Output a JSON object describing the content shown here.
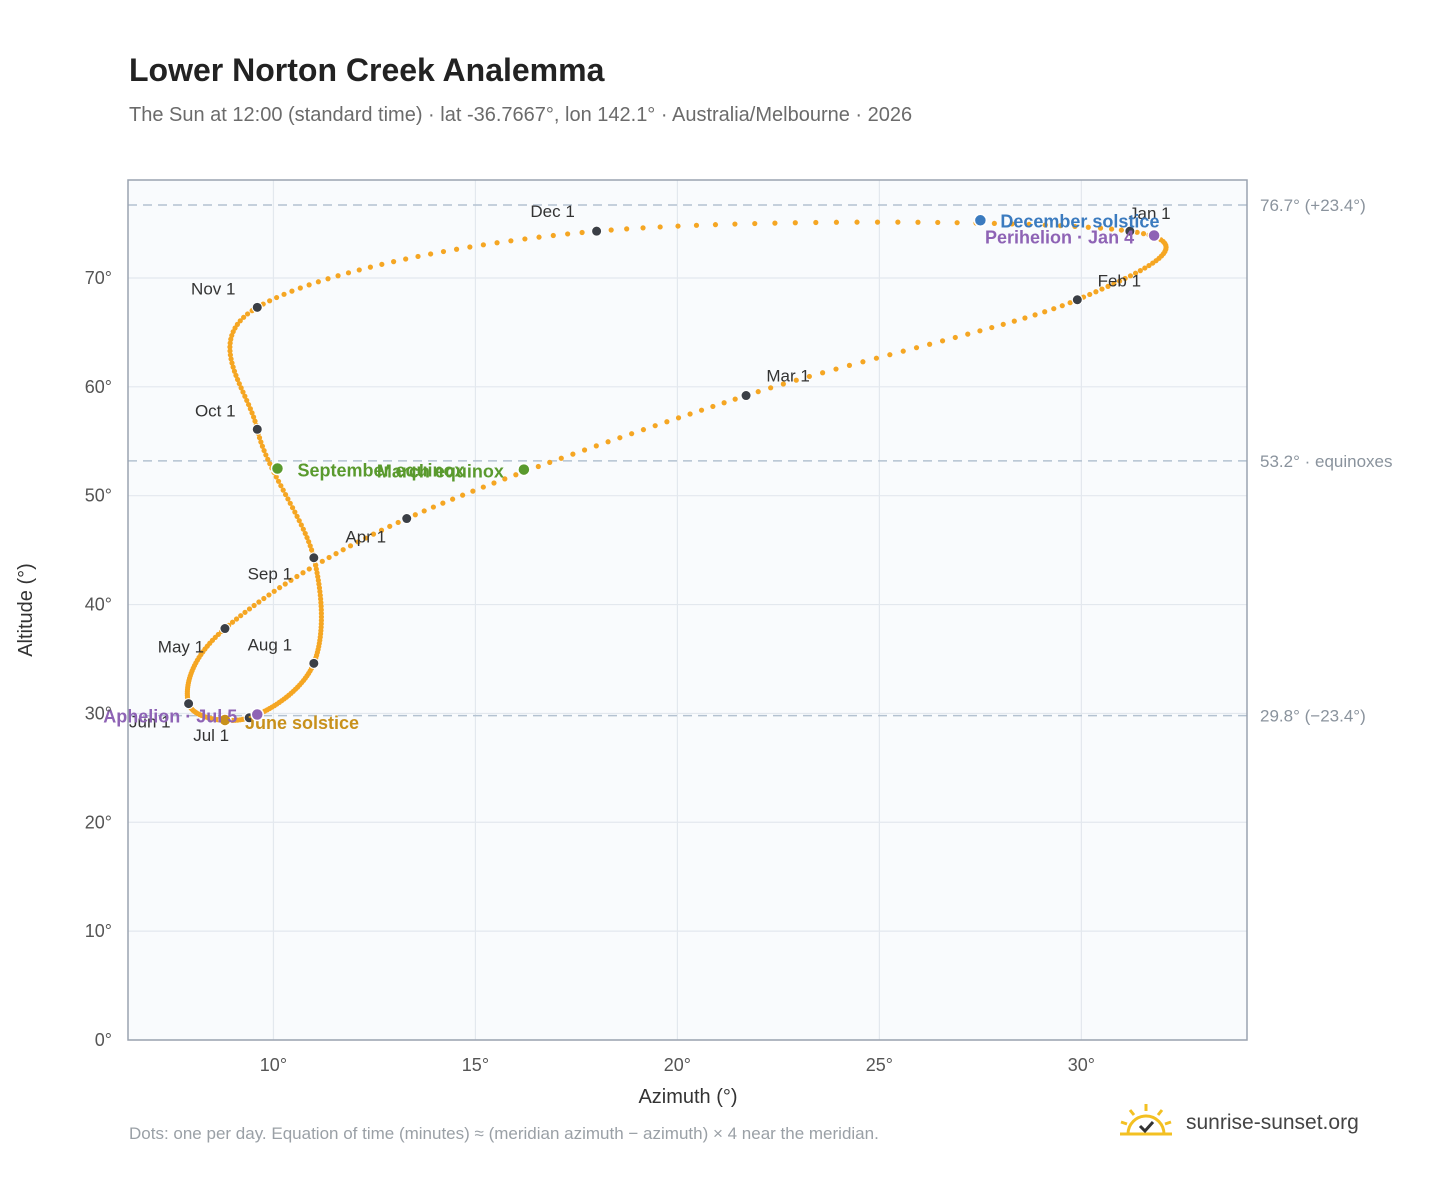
{
  "header": {
    "title": "Lower Norton Creek Analemma",
    "subtitle": "The Sun at 12:00 (standard time) · lat -36.7667°, lon 142.1° · Australia/Melbourne · 2026"
  },
  "footer": {
    "note": "Dots: one per day. Equation of time (minutes) ≈ (meridian azimuth − azimuth) × 4 near the meridian.",
    "brand": "sunrise-sunset.org",
    "brand_icon": "sun-check-icon"
  },
  "chart_data": {
    "type": "scatter",
    "xlabel": "Azimuth (°)",
    "ylabel": "Altitude (°)",
    "xlim": [
      6.4,
      34.1
    ],
    "ylim": [
      0,
      79
    ],
    "xticks": [
      10,
      15,
      20,
      25,
      30
    ],
    "xtick_labels": [
      "10°",
      "15°",
      "20°",
      "25°",
      "30°"
    ],
    "yticks": [
      0,
      10,
      20,
      30,
      40,
      50,
      60,
      70
    ],
    "ytick_labels": [
      "0°",
      "10°",
      "20°",
      "30°",
      "40°",
      "50°",
      "60°",
      "70°"
    ],
    "grid": true,
    "curve_color": "#f5a623",
    "month_points": [
      {
        "label": "Jan 1",
        "azimuth": 31.2,
        "altitude": 74.3
      },
      {
        "label": "Feb 1",
        "azimuth": 29.9,
        "altitude": 68.0
      },
      {
        "label": "Mar 1",
        "azimuth": 21.7,
        "altitude": 59.2
      },
      {
        "label": "Apr 1",
        "azimuth": 13.3,
        "altitude": 47.9
      },
      {
        "label": "May 1",
        "azimuth": 8.8,
        "altitude": 37.8
      },
      {
        "label": "Jun 1",
        "azimuth": 7.9,
        "altitude": 30.9
      },
      {
        "label": "Jul 1",
        "azimuth": 9.4,
        "altitude": 29.6
      },
      {
        "label": "Aug 1",
        "azimuth": 11.0,
        "altitude": 34.6
      },
      {
        "label": "Sep 1",
        "azimuth": 11.0,
        "altitude": 44.3
      },
      {
        "label": "Oct 1",
        "azimuth": 9.6,
        "altitude": 56.1
      },
      {
        "label": "Nov 1",
        "azimuth": 9.6,
        "altitude": 67.3
      },
      {
        "label": "Dec 1",
        "azimuth": 18.0,
        "altitude": 74.3
      }
    ],
    "events": [
      {
        "label": "December solstice",
        "azimuth": 27.5,
        "altitude": 75.3,
        "color": "#3b7bbf"
      },
      {
        "label": "Perihelion · Jan 4",
        "azimuth": 31.8,
        "altitude": 73.9,
        "color": "#8e63b5"
      },
      {
        "label": "March equinox",
        "azimuth": 16.2,
        "altitude": 52.4,
        "color": "#5a9a2e"
      },
      {
        "label": "September equinox",
        "azimuth": 10.1,
        "altitude": 52.5,
        "color": "#5a9a2e"
      },
      {
        "label": "June solstice",
        "azimuth": 8.8,
        "altitude": 29.4,
        "color": "#c8911c"
      },
      {
        "label": "Aphelion · Jul 5",
        "azimuth": 9.6,
        "altitude": 29.9,
        "color": "#8e63b5"
      }
    ],
    "reference_lines": [
      {
        "altitude": 76.7,
        "label": "76.7° (+23.4°)"
      },
      {
        "altitude": 53.2,
        "label": "53.2° · equinoxes"
      },
      {
        "altitude": 29.8,
        "label": "29.8° (−23.4°)"
      }
    ]
  }
}
